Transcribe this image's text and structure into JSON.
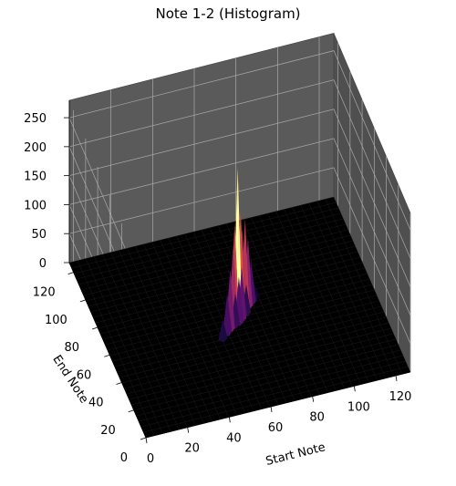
{
  "chart_data": {
    "type": "surface3d",
    "title": "Note 1-2 (Histogram)",
    "xlabel": "Start Note",
    "ylabel": "End Note",
    "zlabel": "",
    "xlim": [
      0,
      127
    ],
    "ylim": [
      0,
      127
    ],
    "zlim": [
      0,
      280
    ],
    "xticks": [
      0,
      20,
      40,
      60,
      80,
      100,
      120
    ],
    "yticks": [
      0,
      20,
      40,
      60,
      80,
      100,
      120
    ],
    "zticks": [
      0,
      50,
      100,
      150,
      200,
      250
    ],
    "colormap": "inferno",
    "pane_color": "#555555",
    "floor_color": "#000000",
    "peaks": [
      {
        "start_note": 62,
        "end_note": 62,
        "count": 265
      },
      {
        "start_note": 64,
        "end_note": 64,
        "count": 185
      },
      {
        "start_note": 60,
        "end_note": 60,
        "count": 175
      },
      {
        "start_note": 67,
        "end_note": 67,
        "count": 160
      },
      {
        "start_note": 65,
        "end_note": 65,
        "count": 150
      },
      {
        "start_note": 59,
        "end_note": 59,
        "count": 140
      },
      {
        "start_note": 69,
        "end_note": 69,
        "count": 120
      },
      {
        "start_note": 57,
        "end_note": 57,
        "count": 105
      },
      {
        "start_note": 62,
        "end_note": 64,
        "count": 90
      },
      {
        "start_note": 64,
        "end_note": 62,
        "count": 90
      },
      {
        "start_note": 60,
        "end_note": 62,
        "count": 80
      },
      {
        "start_note": 62,
        "end_note": 60,
        "count": 80
      },
      {
        "start_note": 71,
        "end_note": 71,
        "count": 75
      },
      {
        "start_note": 55,
        "end_note": 55,
        "count": 70
      },
      {
        "start_note": 64,
        "end_note": 65,
        "count": 60
      },
      {
        "start_note": 65,
        "end_note": 64,
        "count": 60
      },
      {
        "start_note": 59,
        "end_note": 60,
        "count": 55
      },
      {
        "start_note": 60,
        "end_note": 59,
        "count": 55
      },
      {
        "start_note": 67,
        "end_note": 65,
        "count": 50
      },
      {
        "start_note": 65,
        "end_note": 67,
        "count": 50
      },
      {
        "start_note": 72,
        "end_note": 72,
        "count": 45
      },
      {
        "start_note": 52,
        "end_note": 52,
        "count": 35
      },
      {
        "start_note": 57,
        "end_note": 59,
        "count": 30
      },
      {
        "start_note": 67,
        "end_note": 69,
        "count": 30
      },
      {
        "start_note": 62,
        "end_note": 67,
        "count": 25
      },
      {
        "start_note": 60,
        "end_note": 64,
        "count": 25
      },
      {
        "start_note": 55,
        "end_note": 57,
        "count": 20
      },
      {
        "start_note": 74,
        "end_note": 74,
        "count": 20
      }
    ]
  }
}
